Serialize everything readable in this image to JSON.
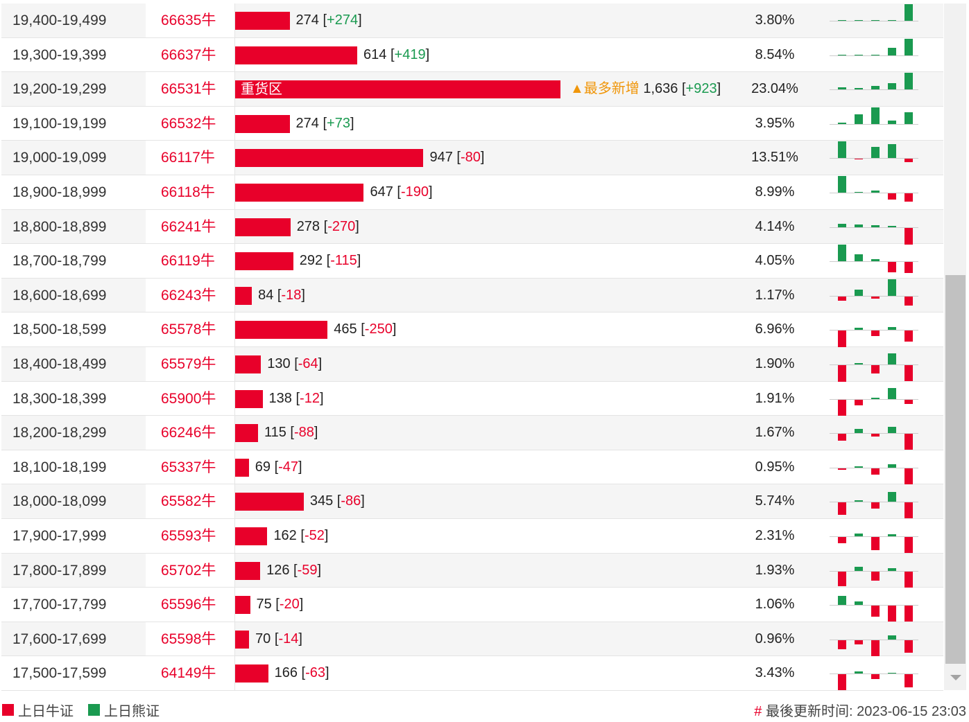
{
  "colors": {
    "bull": "#e8002a",
    "bear": "#1a9a50",
    "highlight": "#f0960a"
  },
  "max_quantity": 1636,
  "rows": [
    {
      "range": "19,400-19,499",
      "code": "66635牛",
      "qty": "274",
      "chg": "+274",
      "pct": "3.80%",
      "spark": [
        0,
        0,
        0,
        0,
        24
      ]
    },
    {
      "range": "19,300-19,399",
      "code": "66637牛",
      "qty": "614",
      "chg": "+419",
      "pct": "8.54%",
      "spark": [
        0,
        0,
        0,
        11,
        24
      ]
    },
    {
      "range": "19,200-19,299",
      "code": "66531牛",
      "qty": "1,636",
      "chg": "+923",
      "pct": "23.04%",
      "bar_label": "重货区",
      "tag": "▲最多新增",
      "spark": [
        3,
        2,
        5,
        9,
        24
      ]
    },
    {
      "range": "19,100-19,199",
      "code": "66532牛",
      "qty": "274",
      "chg": "+73",
      "pct": "3.95%",
      "spark": [
        2,
        14,
        24,
        5,
        17
      ]
    },
    {
      "range": "19,000-19,099",
      "code": "66117牛",
      "qty": "947",
      "chg": "-80",
      "pct": "13.51%",
      "spark": [
        24,
        -1,
        16,
        20,
        -5
      ]
    },
    {
      "range": "18,900-18,999",
      "code": "66118牛",
      "qty": "647",
      "chg": "-190",
      "pct": "8.99%",
      "spark": [
        24,
        1,
        3,
        -9,
        -12
      ]
    },
    {
      "range": "18,800-18,899",
      "code": "66241牛",
      "qty": "278",
      "chg": "-270",
      "pct": "4.14%",
      "spark": [
        5,
        4,
        3,
        2,
        -24
      ]
    },
    {
      "range": "18,700-18,799",
      "code": "66119牛",
      "qty": "292",
      "chg": "-115",
      "pct": "4.05%",
      "spark": [
        24,
        10,
        3,
        -15,
        -16
      ]
    },
    {
      "range": "18,600-18,699",
      "code": "66243牛",
      "qty": "84",
      "chg": "-18",
      "pct": "1.17%",
      "spark": [
        -6,
        9,
        -3,
        24,
        -13
      ]
    },
    {
      "range": "18,500-18,599",
      "code": "65578牛",
      "qty": "465",
      "chg": "-250",
      "pct": "6.96%",
      "spark": [
        -24,
        3,
        -8,
        4,
        -16
      ]
    },
    {
      "range": "18,400-18,499",
      "code": "65579牛",
      "qty": "130",
      "chg": "-64",
      "pct": "1.90%",
      "spark": [
        -24,
        2,
        -12,
        16,
        -23
      ]
    },
    {
      "range": "18,300-18,399",
      "code": "65900牛",
      "qty": "138",
      "chg": "-12",
      "pct": "1.91%",
      "spark": [
        -24,
        -8,
        2,
        16,
        -6
      ]
    },
    {
      "range": "18,200-18,299",
      "code": "66246牛",
      "qty": "115",
      "chg": "-88",
      "pct": "1.67%",
      "spark": [
        -10,
        6,
        -4,
        9,
        -23
      ]
    },
    {
      "range": "18,100-18,199",
      "code": "65337牛",
      "qty": "69",
      "chg": "-47",
      "pct": "0.95%",
      "spark": [
        -2,
        2,
        -9,
        5,
        -23
      ]
    },
    {
      "range": "18,000-18,099",
      "code": "65582牛",
      "qty": "345",
      "chg": "-86",
      "pct": "5.74%",
      "spark": [
        -18,
        2,
        -9,
        14,
        -23
      ]
    },
    {
      "range": "17,900-17,999",
      "code": "65593牛",
      "qty": "162",
      "chg": "-52",
      "pct": "2.31%",
      "spark": [
        -9,
        4,
        -19,
        3,
        -23
      ]
    },
    {
      "range": "17,800-17,899",
      "code": "65702牛",
      "qty": "126",
      "chg": "-59",
      "pct": "1.93%",
      "spark": [
        -21,
        6,
        -13,
        4,
        -23
      ]
    },
    {
      "range": "17,700-17,799",
      "code": "65596牛",
      "qty": "75",
      "chg": "-20",
      "pct": "1.06%",
      "spark": [
        13,
        5,
        -16,
        -23,
        -23
      ]
    },
    {
      "range": "17,600-17,699",
      "code": "65598牛",
      "qty": "70",
      "chg": "-14",
      "pct": "0.96%",
      "spark": [
        -13,
        -6,
        -23,
        6,
        -18
      ]
    },
    {
      "range": "17,500-17,599",
      "code": "64149牛",
      "qty": "166",
      "chg": "-63",
      "pct": "3.43%",
      "spark": [
        -23,
        3,
        -7,
        1,
        -19
      ]
    }
  ],
  "footer": {
    "legend_bull": "上日牛证",
    "legend_bear": "上日熊证",
    "update_hash": "#",
    "update_label": "最後更新时间: 2023-06-15 23:03"
  }
}
